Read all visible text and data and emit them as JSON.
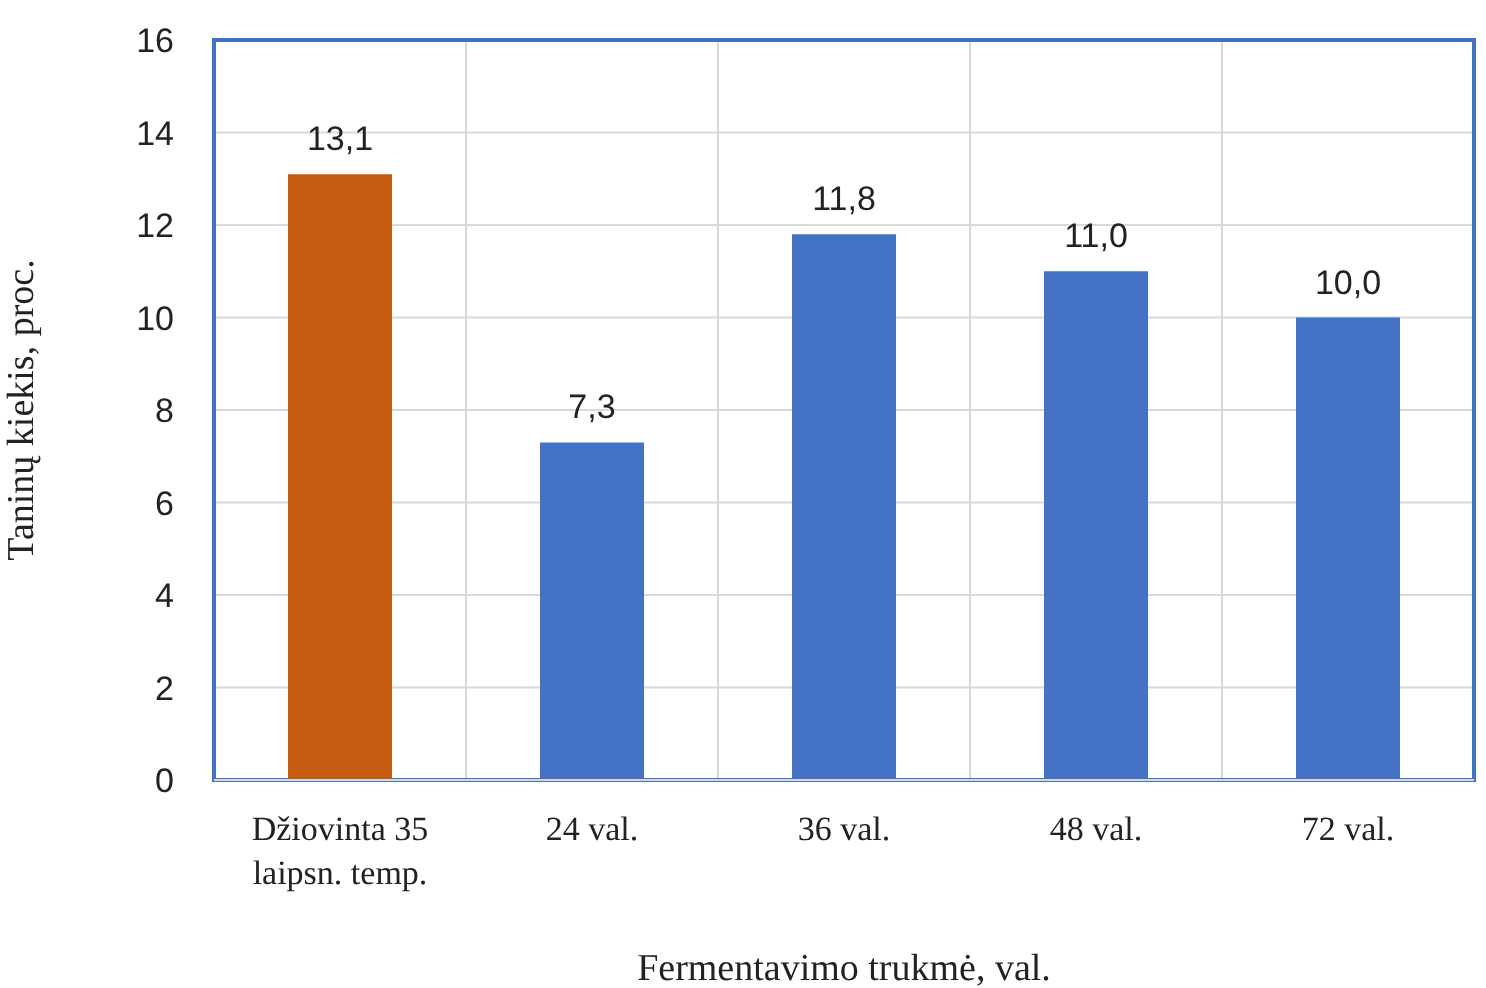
{
  "chart_data": {
    "type": "bar",
    "xlabel": "Fermentavimo trukmė, val.",
    "ylabel": "Taninų kiekis, proc.",
    "categories": [
      "Džiovinta 35 laipsn. temp.",
      "24 val.",
      "36 val.",
      "48 val.",
      "72 val."
    ],
    "values": [
      13.1,
      7.3,
      11.8,
      11.0,
      10.0
    ],
    "colors": [
      "#c55a11",
      "#4472c4",
      "#4472c4",
      "#4472c4",
      "#4472c4"
    ],
    "value_labels": [
      "13,1",
      "7,3",
      "11,8",
      "11,0",
      "10,0"
    ],
    "ylim": [
      0,
      16
    ],
    "yticks": [
      0,
      2,
      4,
      6,
      8,
      10,
      12,
      14,
      16
    ],
    "grid": true
  }
}
